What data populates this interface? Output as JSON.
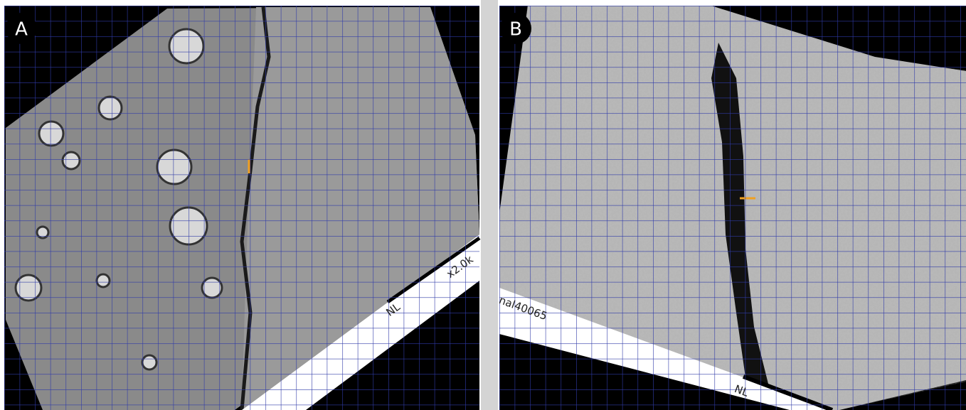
{
  "panels": [
    {
      "label": "A",
      "scale_text": "x2.0k",
      "marker": "NL"
    },
    {
      "label": "B",
      "sample_id": "nal40065",
      "marker": "NL"
    }
  ]
}
